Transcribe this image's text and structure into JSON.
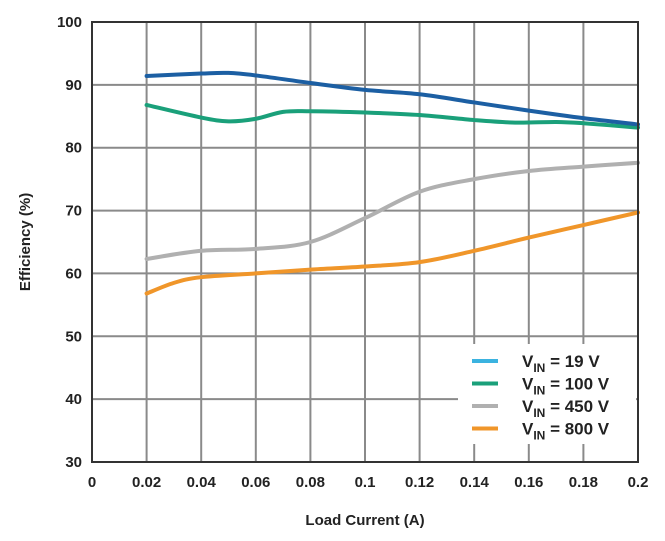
{
  "chart_data": {
    "type": "line",
    "title": "",
    "xlabel": "Load Current (A)",
    "ylabel": "Efficiency (%)",
    "xlim": [
      0,
      0.2
    ],
    "ylim": [
      30,
      100
    ],
    "grid": true,
    "legend_position": "bottom-right",
    "x_ticks": [
      "0",
      "0.02",
      "0.04",
      "0.06",
      "0.08",
      "0.1",
      "0.12",
      "0.14",
      "0.16",
      "0.18",
      "0.2"
    ],
    "y_ticks": [
      "30",
      "40",
      "50",
      "60",
      "70",
      "80",
      "90",
      "100"
    ],
    "series": [
      {
        "name": "V_IN = 19 V",
        "label_main": "V",
        "label_sub": "IN",
        "label_rest": " = 19 V",
        "legend_color": "#3bb3e0",
        "color": "#1c5fa3",
        "x": [
          0.02,
          0.04,
          0.05,
          0.06,
          0.08,
          0.1,
          0.12,
          0.14,
          0.16,
          0.18,
          0.2
        ],
        "y": [
          91.4,
          91.8,
          91.9,
          91.5,
          90.3,
          89.2,
          88.5,
          87.2,
          85.9,
          84.7,
          83.7
        ]
      },
      {
        "name": "V_IN = 100 V",
        "label_main": "V",
        "label_sub": "IN",
        "label_rest": " = 100 V",
        "legend_color": "#1aa07a",
        "color": "#1aa07a",
        "x": [
          0.02,
          0.04,
          0.05,
          0.06,
          0.07,
          0.08,
          0.1,
          0.12,
          0.14,
          0.155,
          0.17,
          0.18,
          0.2
        ],
        "y": [
          86.8,
          84.8,
          84.2,
          84.6,
          85.7,
          85.8,
          85.6,
          85.2,
          84.4,
          84.0,
          84.1,
          83.9,
          83.2
        ]
      },
      {
        "name": "V_IN = 450 V",
        "label_main": "V",
        "label_sub": "IN",
        "label_rest": " = 450 V",
        "legend_color": "#b0b0b0",
        "color": "#b0b0b0",
        "x": [
          0.02,
          0.04,
          0.06,
          0.08,
          0.1,
          0.12,
          0.14,
          0.16,
          0.18,
          0.2
        ],
        "y": [
          62.3,
          63.6,
          63.9,
          65.0,
          68.8,
          73.0,
          75.0,
          76.3,
          77.0,
          77.6
        ]
      },
      {
        "name": "V_IN = 800 V",
        "label_main": "V",
        "label_sub": "IN",
        "label_rest": " = 800 V",
        "legend_color": "#f0962a",
        "color": "#f0962a",
        "x": [
          0.02,
          0.03,
          0.04,
          0.06,
          0.08,
          0.1,
          0.12,
          0.14,
          0.16,
          0.18,
          0.2
        ],
        "y": [
          56.8,
          58.5,
          59.4,
          60.0,
          60.6,
          61.1,
          61.8,
          63.6,
          65.7,
          67.7,
          69.7
        ]
      }
    ]
  }
}
